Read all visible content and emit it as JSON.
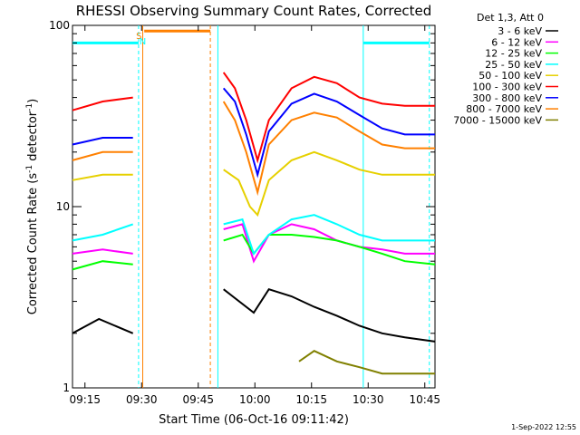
{
  "chart_data": {
    "type": "line",
    "title": "RHESSI Observing Summary Count Rates, Corrected",
    "xlabel": "Start Time (06-Oct-16 09:11:42)",
    "ylabel_main": "Corrected Count Rate (s",
    "ylabel_sup1": "-1",
    "ylabel_mid": " detector",
    "ylabel_sup2": "-1",
    "ylabel_end": ")",
    "footer": "1-Sep-2022 12:55",
    "y_scale": "log",
    "ylim": [
      1,
      100
    ],
    "xlim_minutes_from_09_11_42": [
      0,
      96
    ],
    "x_ticks": [
      {
        "label": "09:15",
        "t": 3.3
      },
      {
        "label": "09:30",
        "t": 18.3
      },
      {
        "label": "09:45",
        "t": 33.3
      },
      {
        "label": "10:00",
        "t": 48.3
      },
      {
        "label": "10:15",
        "t": 63.3
      },
      {
        "label": "10:30",
        "t": 78.3
      },
      {
        "label": "10:45",
        "t": 93.3
      }
    ],
    "y_ticks": [
      {
        "label": "1",
        "v": 1
      },
      {
        "label": "10",
        "v": 10
      },
      {
        "label": "100",
        "v": 100
      }
    ],
    "legend_title": "Det 1,3, Att 0",
    "legend_placement": "right",
    "grid": false,
    "series": [
      {
        "name": "3 - 6 keV",
        "color": "#000000",
        "values": [
          [
            0,
            2
          ],
          [
            7,
            2.4
          ],
          [
            16,
            2
          ],
          [
            19,
            null
          ],
          [
            37,
            null
          ],
          [
            40,
            3.5
          ],
          [
            48,
            2.6
          ],
          [
            52,
            3.5
          ],
          [
            58,
            3.2
          ],
          [
            64,
            2.8
          ],
          [
            70,
            2.5
          ],
          [
            76,
            2.2
          ],
          [
            82,
            2
          ],
          [
            88,
            1.9
          ],
          [
            96,
            1.8
          ]
        ]
      },
      {
        "name": "6 - 12 keV",
        "color": "#ff00ff",
        "values": [
          [
            0,
            5.5
          ],
          [
            8,
            5.8
          ],
          [
            16,
            5.5
          ],
          [
            19,
            null
          ],
          [
            37,
            null
          ],
          [
            40,
            7.5
          ],
          [
            45,
            8
          ],
          [
            48,
            5
          ],
          [
            52,
            7
          ],
          [
            58,
            8
          ],
          [
            64,
            7.5
          ],
          [
            70,
            6.5
          ],
          [
            76,
            6
          ],
          [
            82,
            5.8
          ],
          [
            88,
            5.5
          ],
          [
            96,
            5.5
          ]
        ]
      },
      {
        "name": "12 - 25 keV",
        "color": "#00ff00",
        "values": [
          [
            0,
            4.5
          ],
          [
            8,
            5
          ],
          [
            16,
            4.8
          ],
          [
            19,
            null
          ],
          [
            37,
            null
          ],
          [
            40,
            6.5
          ],
          [
            45,
            7
          ],
          [
            48,
            5.5
          ],
          [
            52,
            7
          ],
          [
            58,
            7
          ],
          [
            64,
            6.8
          ],
          [
            70,
            6.5
          ],
          [
            76,
            6
          ],
          [
            82,
            5.5
          ],
          [
            88,
            5
          ],
          [
            96,
            4.8
          ]
        ]
      },
      {
        "name": "25 - 50 keV",
        "color": "#00ffff",
        "values": [
          [
            0,
            6.5
          ],
          [
            8,
            7
          ],
          [
            16,
            8
          ],
          [
            19,
            null
          ],
          [
            37,
            null
          ],
          [
            40,
            8
          ],
          [
            45,
            8.5
          ],
          [
            48,
            5.5
          ],
          [
            52,
            7
          ],
          [
            58,
            8.5
          ],
          [
            64,
            9
          ],
          [
            70,
            8
          ],
          [
            76,
            7
          ],
          [
            82,
            6.5
          ],
          [
            88,
            6.5
          ],
          [
            96,
            6.5
          ]
        ]
      },
      {
        "name": "50 - 100 keV",
        "color": "#e6d000",
        "values": [
          [
            0,
            14
          ],
          [
            8,
            15
          ],
          [
            16,
            15
          ],
          [
            19,
            null
          ],
          [
            37,
            null
          ],
          [
            40,
            16
          ],
          [
            44,
            14
          ],
          [
            47,
            10
          ],
          [
            49,
            9
          ],
          [
            52,
            14
          ],
          [
            58,
            18
          ],
          [
            64,
            20
          ],
          [
            70,
            18
          ],
          [
            76,
            16
          ],
          [
            82,
            15
          ],
          [
            88,
            15
          ],
          [
            96,
            15
          ]
        ]
      },
      {
        "name": "100 - 300 keV",
        "color": "#ff0000",
        "values": [
          [
            0,
            34
          ],
          [
            8,
            38
          ],
          [
            16,
            40
          ],
          [
            19,
            null
          ],
          [
            37,
            null
          ],
          [
            40,
            55
          ],
          [
            43,
            45
          ],
          [
            46,
            30
          ],
          [
            49,
            18
          ],
          [
            52,
            30
          ],
          [
            58,
            45
          ],
          [
            64,
            52
          ],
          [
            70,
            48
          ],
          [
            76,
            40
          ],
          [
            82,
            37
          ],
          [
            88,
            36
          ],
          [
            96,
            36
          ]
        ]
      },
      {
        "name": "300 - 800 keV",
        "color": "#0000ff",
        "values": [
          [
            0,
            22
          ],
          [
            8,
            24
          ],
          [
            16,
            24
          ],
          [
            19,
            null
          ],
          [
            37,
            null
          ],
          [
            40,
            45
          ],
          [
            43,
            38
          ],
          [
            46,
            25
          ],
          [
            49,
            15
          ],
          [
            52,
            26
          ],
          [
            58,
            37
          ],
          [
            64,
            42
          ],
          [
            70,
            38
          ],
          [
            76,
            32
          ],
          [
            82,
            27
          ],
          [
            88,
            25
          ],
          [
            96,
            25
          ]
        ]
      },
      {
        "name": "800 - 7000 keV",
        "color": "#ff8000",
        "values": [
          [
            0,
            18
          ],
          [
            8,
            20
          ],
          [
            16,
            20
          ],
          [
            19,
            null
          ],
          [
            37,
            null
          ],
          [
            40,
            38
          ],
          [
            43,
            30
          ],
          [
            46,
            20
          ],
          [
            49,
            12
          ],
          [
            52,
            22
          ],
          [
            58,
            30
          ],
          [
            64,
            33
          ],
          [
            70,
            31
          ],
          [
            76,
            26
          ],
          [
            82,
            22
          ],
          [
            88,
            21
          ],
          [
            96,
            21
          ]
        ]
      },
      {
        "name": "7000 - 15000 keV",
        "color": "#808000",
        "values": [
          [
            0,
            null
          ],
          [
            50,
            null
          ],
          [
            60,
            1.4
          ],
          [
            64,
            1.6
          ],
          [
            70,
            1.4
          ],
          [
            76,
            1.3
          ],
          [
            82,
            1.2
          ],
          [
            88,
            1.2
          ],
          [
            96,
            1.2
          ]
        ]
      }
    ],
    "annotations": [
      {
        "text": "S",
        "color": "#ff8000",
        "t": 17.6
      },
      {
        "text": "N",
        "color": "#00ffff",
        "t": 18.6
      }
    ],
    "flag_bars": [
      {
        "label": "cyan-flag",
        "color": "#00ffff",
        "t0": 0,
        "t1": 17.5,
        "v": 80
      },
      {
        "label": "orange-flag",
        "color": "#ff8000",
        "t0": 19,
        "t1": 36.5,
        "v": 93
      },
      {
        "label": "cyan-flag-2",
        "color": "#00ffff",
        "t0": 77,
        "t1": 94.5,
        "v": 80
      }
    ],
    "vlines": [
      {
        "t": 17.5,
        "color": "#00ffff",
        "dashed": true
      },
      {
        "t": 18.6,
        "color": "#ff8000",
        "dashed": false
      },
      {
        "t": 36.5,
        "color": "#ff8000",
        "dashed": true
      },
      {
        "t": 38.5,
        "color": "#00ffff",
        "dashed": false
      },
      {
        "t": 77,
        "color": "#00ffff",
        "dashed": false
      },
      {
        "t": 94.5,
        "color": "#00ffff",
        "dashed": true
      }
    ]
  }
}
